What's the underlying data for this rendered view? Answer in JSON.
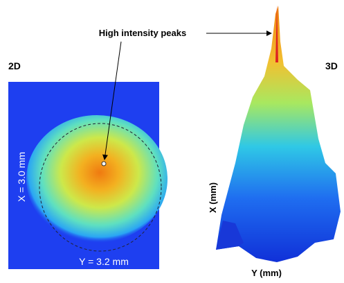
{
  "annotation": "High intensity peaks",
  "panel_2d": {
    "title": "2D",
    "x_label": "X = 3.0 mm",
    "y_label": "Y = 3.2 mm"
  },
  "panel_3d": {
    "title": "3D",
    "x_label": "X (mm)",
    "y_label": "Y (mm)"
  }
}
